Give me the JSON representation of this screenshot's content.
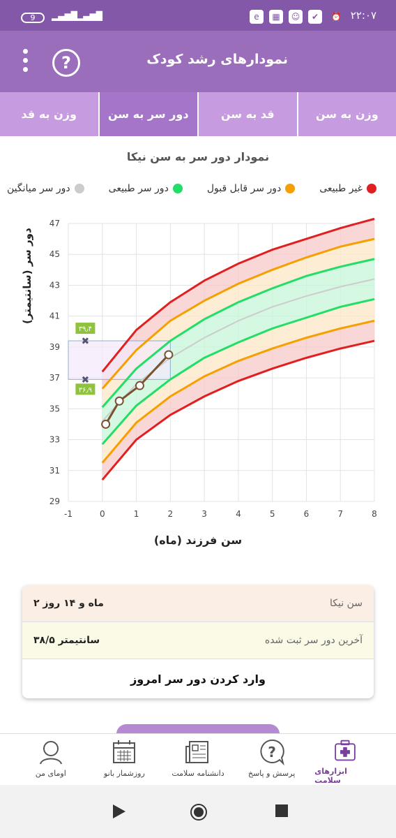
{
  "status": {
    "time": "۲۲:۰۷",
    "battery": "9"
  },
  "appbar": {
    "title": "نمودارهای رشد کودک",
    "help_label": "?"
  },
  "tabs": [
    {
      "label": "وزن به سن",
      "active": false
    },
    {
      "label": "قد به سن",
      "active": false
    },
    {
      "label": "دور سر به سن",
      "active": true
    },
    {
      "label": "وزن به قد",
      "active": false
    }
  ],
  "chart_title": "نمودار دور سر به سن نیکا",
  "legend": [
    {
      "label": "غیر طبیعی",
      "color": "#e02020"
    },
    {
      "label": "دور سر قابل قبول",
      "color": "#f5a000"
    },
    {
      "label": "دور سر طبیعی",
      "color": "#22dd66"
    },
    {
      "label": "دور سر میانگین",
      "color": "#cccccc"
    }
  ],
  "chart_data": {
    "type": "line",
    "xlabel": "سن فرزند (ماه)",
    "ylabel": "دور سر (سانتیمتر)",
    "xlim": [
      -1,
      8
    ],
    "ylim": [
      29,
      47
    ],
    "xticks": [
      "-1",
      "0",
      "1",
      "2",
      "3",
      "4",
      "5",
      "6",
      "7",
      "8"
    ],
    "yticks": [
      "29",
      "31",
      "33",
      "35",
      "37",
      "39",
      "41",
      "43",
      "45",
      "47"
    ],
    "x": [
      0,
      1,
      2,
      3,
      4,
      5,
      6,
      7,
      8
    ],
    "series": [
      {
        "name": "غیر طبیعی",
        "values": [
          37.4,
          40.1,
          41.9,
          43.3,
          44.4,
          45.3,
          46.0,
          46.7,
          47.3
        ],
        "color": "#e02020"
      },
      {
        "name": "دور سر قابل قبول",
        "values": [
          36.3,
          38.8,
          40.7,
          42.0,
          43.1,
          44.0,
          44.8,
          45.5,
          46.0
        ],
        "color": "#f5a000"
      },
      {
        "name": "دور سر طبیعی",
        "values": [
          35.1,
          37.6,
          39.4,
          40.8,
          41.9,
          42.8,
          43.6,
          44.2,
          44.7
        ],
        "color": "#22dd66"
      },
      {
        "name": "دور سر میانگین",
        "values": [
          34.2,
          36.6,
          38.3,
          39.6,
          40.7,
          41.6,
          42.3,
          42.9,
          43.4
        ],
        "color": "#cccccc"
      },
      {
        "name": "دور سر طبیعی",
        "values": [
          32.7,
          35.2,
          36.9,
          38.3,
          39.3,
          40.2,
          40.9,
          41.6,
          42.1
        ],
        "color": "#22dd66"
      },
      {
        "name": "دور سر قابل قبول",
        "values": [
          31.5,
          34.1,
          35.8,
          37.1,
          38.1,
          38.9,
          39.6,
          40.2,
          40.7
        ],
        "color": "#f5a000"
      },
      {
        "name": "غیر طبیعی",
        "values": [
          30.4,
          33.0,
          34.6,
          35.8,
          36.8,
          37.6,
          38.3,
          38.9,
          39.4
        ],
        "color": "#e02020"
      }
    ],
    "child_points": {
      "x": [
        0.1,
        0.5,
        1.1,
        1.95
      ],
      "y": [
        34.0,
        35.5,
        36.5,
        38.5
      ],
      "color": "#7a5230"
    },
    "reference_range": {
      "x": [
        -1,
        2
      ],
      "low": 36.9,
      "high": 39.4,
      "low_label": "۳۶٫۹",
      "high_label": "۳۹٫۴"
    }
  },
  "info": {
    "age_label": "سن نیکا",
    "age_value": "۲ ماه و ۱۴ روز",
    "last_label": "آخرین دور سر ثبت شده",
    "last_value": "۳۸/۵ سانتیمتر",
    "action": "وارد کردن دور سر امروز"
  },
  "bottomnav": [
    {
      "label": "ابزارهای سلامت",
      "icon": "health-kit-icon",
      "active": true
    },
    {
      "label": "پرسش و پاسخ",
      "icon": "question-bubble-icon",
      "active": false
    },
    {
      "label": "دانشنامه سلامت",
      "icon": "newspaper-icon",
      "active": false
    },
    {
      "label": "روزشمار بانو",
      "icon": "calendar-icon",
      "active": false
    },
    {
      "label": "اومای من",
      "icon": "avatar-icon",
      "active": false
    }
  ]
}
